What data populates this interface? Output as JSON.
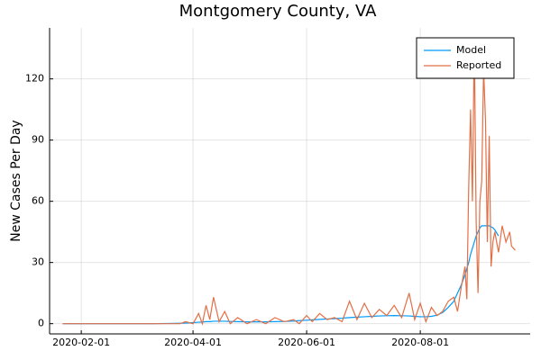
{
  "chart_data": {
    "type": "line",
    "title": "Montgomery County, VA",
    "y_label": "New Cases Per Day",
    "x": [
      "2020-01-22",
      "2020-02-15",
      "2020-03-10",
      "2020-03-25",
      "2020-03-28",
      "2020-04-01",
      "2020-04-04",
      "2020-04-06",
      "2020-04-08",
      "2020-04-10",
      "2020-04-12",
      "2020-04-15",
      "2020-04-18",
      "2020-04-21",
      "2020-04-25",
      "2020-04-30",
      "2020-05-05",
      "2020-05-10",
      "2020-05-15",
      "2020-05-20",
      "2020-05-25",
      "2020-05-28",
      "2020-06-01",
      "2020-06-04",
      "2020-06-08",
      "2020-06-12",
      "2020-06-16",
      "2020-06-20",
      "2020-06-24",
      "2020-06-28",
      "2020-07-02",
      "2020-07-06",
      "2020-07-10",
      "2020-07-14",
      "2020-07-18",
      "2020-07-22",
      "2020-07-26",
      "2020-07-29",
      "2020-08-01",
      "2020-08-04",
      "2020-08-07",
      "2020-08-10",
      "2020-08-13",
      "2020-08-16",
      "2020-08-19",
      "2020-08-21",
      "2020-08-23",
      "2020-08-25",
      "2020-08-26",
      "2020-08-27",
      "2020-08-28",
      "2020-08-29",
      "2020-08-30",
      "2020-08-31",
      "2020-09-01",
      "2020-09-02",
      "2020-09-03",
      "2020-09-04",
      "2020-09-05",
      "2020-09-06",
      "2020-09-07",
      "2020-09-08",
      "2020-09-09",
      "2020-09-10",
      "2020-09-12",
      "2020-09-14",
      "2020-09-16",
      "2020-09-18",
      "2020-09-19",
      "2020-09-21"
    ],
    "series": [
      {
        "name": "Model",
        "color": "#009af9",
        "values": [
          0,
          0,
          0,
          0.2,
          0.3,
          0.5,
          0.7,
          0.8,
          1,
          1,
          1.2,
          1.2,
          1.2,
          1.1,
          1,
          0.9,
          0.9,
          0.9,
          1,
          1.1,
          1.3,
          1.5,
          1.7,
          1.9,
          2.1,
          2.3,
          2.5,
          2.7,
          3,
          3.2,
          3.4,
          3.6,
          3.8,
          3.9,
          4,
          3.9,
          3.8,
          3.6,
          3.4,
          3.4,
          3.6,
          4.2,
          5.5,
          8,
          11,
          15,
          19,
          24,
          27,
          30,
          34,
          37,
          40,
          43,
          45,
          47,
          48,
          48,
          48,
          48,
          48,
          47.5,
          47,
          46,
          43,
          null,
          null,
          null,
          null,
          null
        ]
      },
      {
        "name": "Reported",
        "color": "#e26f46",
        "values": [
          0,
          0,
          0,
          0,
          1,
          0,
          5,
          0,
          9,
          2,
          13,
          1,
          6,
          0,
          3,
          0,
          2,
          0,
          3,
          1,
          2,
          0,
          4,
          1,
          5,
          2,
          3,
          1,
          11,
          2,
          10,
          3,
          7,
          4,
          9,
          3,
          15,
          2,
          10,
          1,
          8,
          4,
          6,
          11,
          13,
          6,
          18,
          28,
          12,
          67,
          105,
          60,
          140,
          50,
          15,
          60,
          70,
          125,
          100,
          40,
          92,
          28,
          40,
          45,
          35,
          48,
          40,
          45,
          38,
          36
        ]
      }
    ],
    "xlim": [
      "2020-01-15",
      "2020-09-29"
    ],
    "xticks": [
      "2020-02-01",
      "2020-04-01",
      "2020-06-01",
      "2020-08-01"
    ],
    "ylim": [
      -5,
      145
    ],
    "yticks": [
      0,
      30,
      60,
      90,
      120
    ],
    "grid": true,
    "legend": "top-right"
  }
}
